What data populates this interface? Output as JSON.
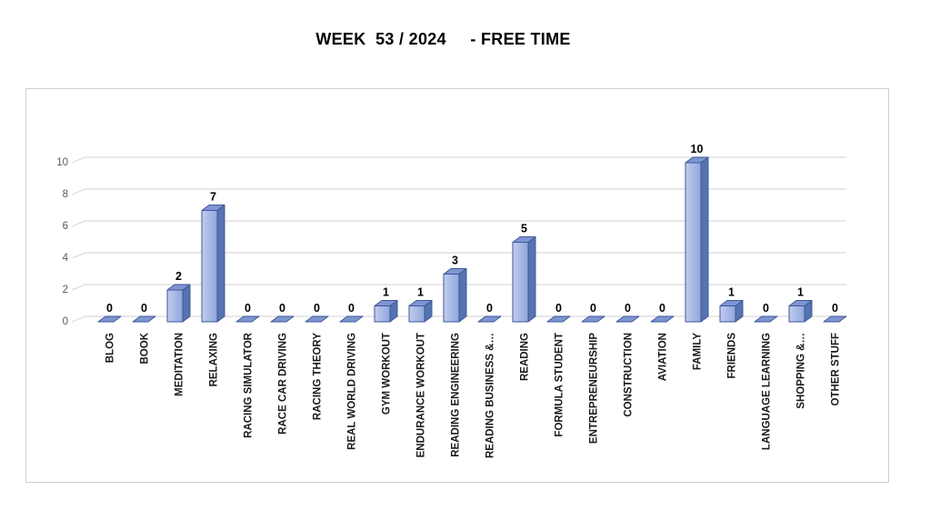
{
  "page": {
    "background": "#ffffff"
  },
  "header": {
    "title": "WEEK  53 / 2024     - FREE TIME"
  },
  "chart_data": {
    "type": "bar",
    "style": "3d-column",
    "title": "WEEK  53 / 2024     - FREE TIME",
    "categories": [
      "BLOG",
      "BOOK",
      "MEDITATION",
      "RELAXING",
      "RACING SIMULATOR",
      "RACE CAR DRIVING",
      "RACING THEORY",
      "REAL WORLD DRIVING",
      "GYM WORKOUT",
      "ENDURANCE WORKOUT",
      "READING ENGINEERING",
      "READING BUSINESS &…",
      "READING",
      "FORMULA STUDENT",
      "ENTREPRENEURSHIP",
      "CONSTRUCTION",
      "AVIATION",
      "FAMILY",
      "FRIENDS",
      "LANGUAGE LEARNING",
      "SHOPPING &…",
      "OTHER STUFF"
    ],
    "values": [
      0,
      0,
      2,
      7,
      0,
      0,
      0,
      0,
      1,
      1,
      3,
      0,
      5,
      0,
      0,
      0,
      0,
      10,
      1,
      0,
      1,
      0
    ],
    "data_labels": [
      0,
      0,
      2,
      7,
      0,
      0,
      0,
      0,
      1,
      1,
      3,
      0,
      5,
      0,
      0,
      0,
      0,
      10,
      1,
      0,
      1,
      0
    ],
    "xlabel": "",
    "ylabel": "",
    "ylim": [
      0,
      10
    ],
    "yticks": [
      0,
      2,
      4,
      6,
      8,
      10
    ],
    "grid": true,
    "legend": "none",
    "colors": {
      "bar_front_light": "#c2ccee",
      "bar_front_dark": "#8fa6dc",
      "bar_side": "#5573b0",
      "bar_top": "#7d95d2",
      "bar_stroke": "#3f5796",
      "gridline": "#d9d9d9",
      "axis_text": "#595959",
      "category_text": "#1a1a1a",
      "value_text": "#000000",
      "chart_border": "#d0d0d0",
      "background": "#ffffff"
    }
  }
}
